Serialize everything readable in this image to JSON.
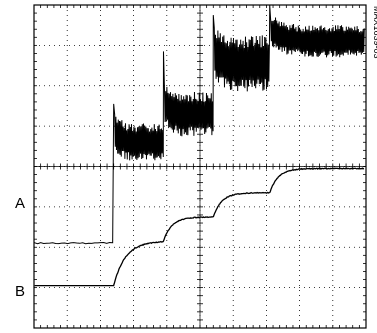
{
  "figure_id": "MAX1639-03",
  "chart_data": {
    "type": "line",
    "title": "",
    "xlabel": "",
    "ylabel": "",
    "grid": true,
    "grid_divisions": {
      "x": 10,
      "y": 8
    },
    "series": [
      {
        "name": "A",
        "baseline_div": 2.1,
        "steps": [
          {
            "t_div": 0.0,
            "level_div": 2.1,
            "noise_div": 0.0
          },
          {
            "t_div": 2.4,
            "level_div": 4.75,
            "noise_div": 0.95
          },
          {
            "t_div": 3.9,
            "level_div": 5.45,
            "noise_div": 1.1
          },
          {
            "t_div": 5.4,
            "level_div": 6.7,
            "noise_div": 1.4
          },
          {
            "t_div": 7.1,
            "level_div": 7.25,
            "noise_div": 0.8
          }
        ],
        "spikes": [
          {
            "t_div": 2.4,
            "peak_div": 5.55
          },
          {
            "t_div": 3.9,
            "peak_div": 6.85
          },
          {
            "t_div": 5.4,
            "peak_div": 7.75
          },
          {
            "t_div": 7.1,
            "peak_div": 8.0
          }
        ]
      },
      {
        "name": "B",
        "baseline_div": 1.05,
        "steps": [
          {
            "t_div": 0.0,
            "level_div": 1.05
          },
          {
            "t_div": 2.4,
            "level_div": 2.15
          },
          {
            "t_div": 3.9,
            "level_div": 2.75
          },
          {
            "t_div": 5.4,
            "level_div": 3.35
          },
          {
            "t_div": 7.1,
            "level_div": 3.95
          }
        ]
      }
    ]
  }
}
